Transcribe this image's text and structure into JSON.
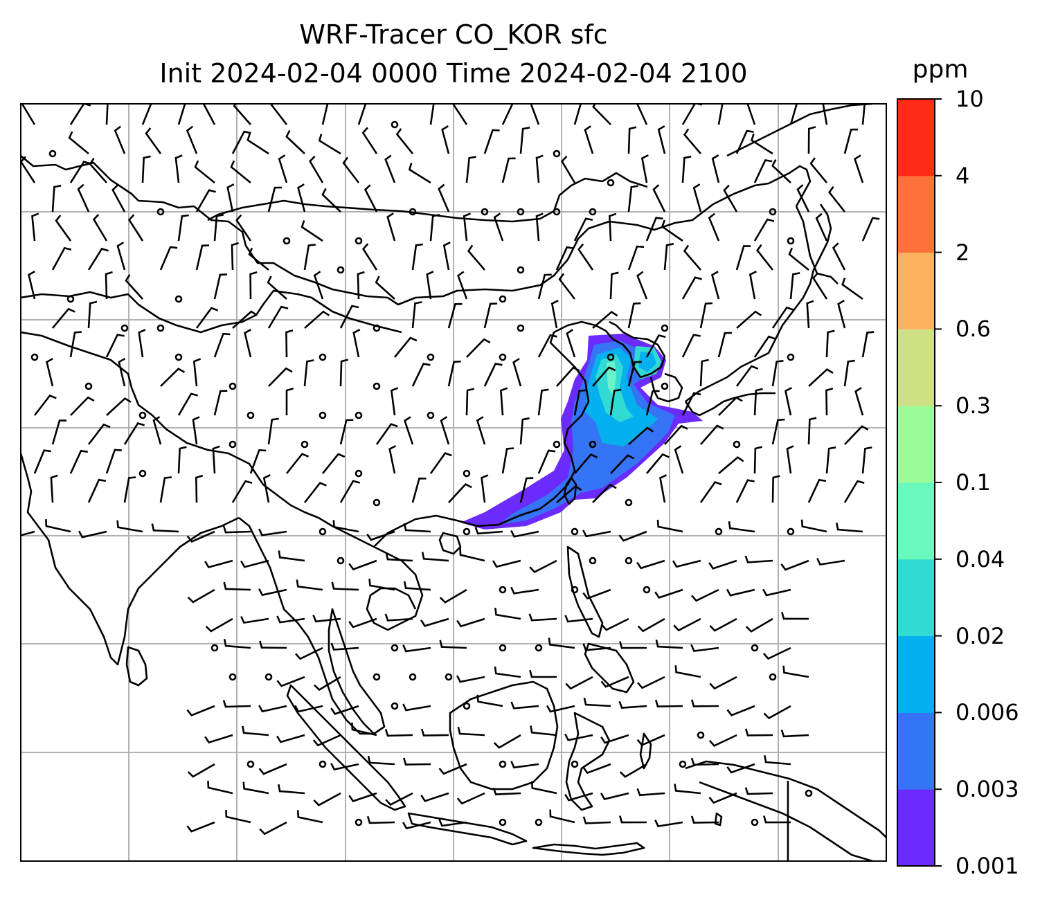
{
  "title": {
    "line1": "WRF-Tracer CO_KOR sfc",
    "line2": "Init 2024-02-04 0000 Time 2024-02-04 2100"
  },
  "colorbar": {
    "unit": "ppm",
    "ticks": [
      "0.001",
      "0.003",
      "0.006",
      "0.02",
      "0.04",
      "0.1",
      "0.3",
      "0.6",
      "2",
      "4",
      "10"
    ],
    "colors": [
      "#6a2bfb",
      "#3574f4",
      "#05b0ee",
      "#31dbd3",
      "#69f9bd",
      "#9afc98",
      "#cee085",
      "#fdb262",
      "#ff713a",
      "#ff2b16"
    ]
  },
  "map": {
    "gridlines": true,
    "grid_color": "#b0b0b0",
    "coastline_color": "#000000",
    "plume_colors": [
      "#6a2bfb",
      "#3574f4",
      "#05b0ee",
      "#31dbd3"
    ]
  }
}
